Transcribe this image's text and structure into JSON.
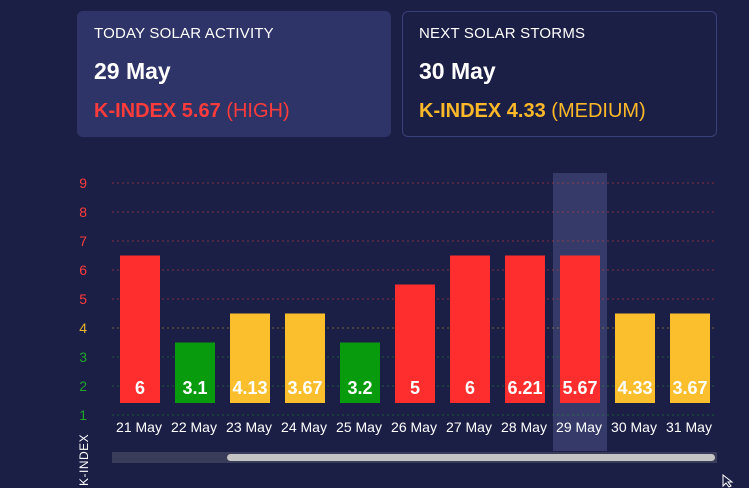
{
  "today": {
    "label": "TODAY SOLAR ACTIVITY",
    "date": "29 May",
    "kindex_label": "K-INDEX 5.67",
    "level": "(HIGH)",
    "color": "#ff3b3b"
  },
  "next": {
    "label": "NEXT SOLAR STORMS",
    "date": "30 May",
    "kindex_label": "K-INDEX 4.33",
    "level": "(MEDIUM)",
    "color": "#fbb829"
  },
  "chart_data": {
    "type": "bar",
    "categories": [
      "21 May",
      "22 May",
      "23 May",
      "24 May",
      "25 May",
      "26 May",
      "27 May",
      "28 May",
      "29 May",
      "30 May",
      "31 May"
    ],
    "values": [
      6,
      3.1,
      4.13,
      3.67,
      3.2,
      5,
      6,
      6.21,
      5.67,
      4.33,
      3.67
    ],
    "value_labels": [
      "6",
      "3.1",
      "4.13",
      "3.67",
      "3.2",
      "5",
      "6",
      "6.21",
      "5.67",
      "4.33",
      "3.67"
    ],
    "bar_heights": [
      6.5,
      3.5,
      4.5,
      4.5,
      3.5,
      5.5,
      6.5,
      6.5,
      6.5,
      4.5,
      4.5
    ],
    "bar_colors": [
      "#ff2e2e",
      "#079b0d",
      "#fbbf2e",
      "#fbbf2e",
      "#079b0d",
      "#ff2e2e",
      "#ff2e2e",
      "#ff2e2e",
      "#ff2e2e",
      "#fbbf2e",
      "#fbbf2e"
    ],
    "highlighted_category": "29 May",
    "yticks": [
      1,
      2,
      3,
      4,
      5,
      6,
      7,
      8,
      9
    ],
    "ytick_colors": [
      "#1fa52a",
      "#1fa52a",
      "#1fa52a",
      "#e8b430",
      "#ff3b3b",
      "#ff3b3b",
      "#ff3b3b",
      "#ff3b3b",
      "#ff3b3b"
    ],
    "ylabel": "K-INDEX",
    "ylim": [
      1,
      9
    ],
    "grid": true
  }
}
